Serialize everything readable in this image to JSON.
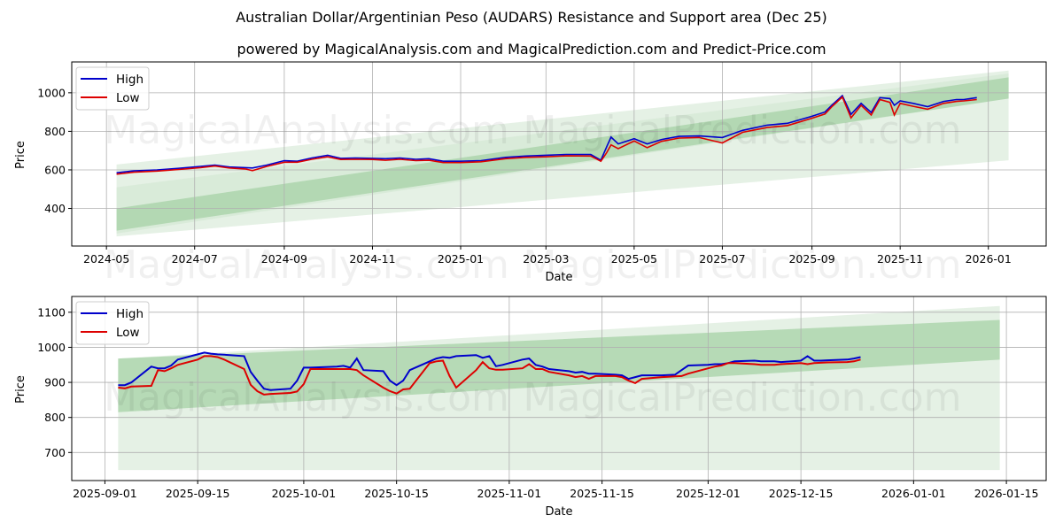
{
  "title": "Australian Dollar/Argentinian Peso (AUDARS) Resistance and Support area (Dec 25)",
  "subtitle": "powered by MagicalAnalysis.com and MagicalPrediction.com and Predict-Price.com",
  "watermarks": [
    "MagicalAnalysis.com",
    "MagicalPrediction.com"
  ],
  "colors": {
    "high": "#0000cc",
    "low": "#dd0000",
    "band_dark": "#a6d2a6",
    "band_light": "#cfe6cf"
  },
  "chart_data": [
    {
      "type": "line",
      "title": "Full range",
      "xlabel": "Date",
      "ylabel": "Price",
      "ylim": [
        205,
        1160
      ],
      "x_ticks": [
        "2024-05",
        "2024-07",
        "2024-09",
        "2024-11",
        "2025-01",
        "2025-03",
        "2025-05",
        "2025-07",
        "2025-09",
        "2025-11",
        "2026-01"
      ],
      "y_ticks": [
        400,
        600,
        800,
        1000
      ],
      "legend": [
        "High",
        "Low"
      ],
      "legend_position": "upper left",
      "grid": true,
      "x": [
        "2024-05-08",
        "2024-05-20",
        "2024-06-05",
        "2024-06-20",
        "2024-07-05",
        "2024-07-15",
        "2024-07-25",
        "2024-08-05",
        "2024-08-10",
        "2024-08-20",
        "2024-09-01",
        "2024-09-10",
        "2024-09-20",
        "2024-10-01",
        "2024-10-10",
        "2024-10-20",
        "2024-11-01",
        "2024-11-10",
        "2024-11-20",
        "2024-12-01",
        "2024-12-10",
        "2024-12-20",
        "2025-01-01",
        "2025-01-15",
        "2025-02-01",
        "2025-02-15",
        "2025-03-01",
        "2025-03-15",
        "2025-04-01",
        "2025-04-08",
        "2025-04-12",
        "2025-04-15",
        "2025-04-20",
        "2025-05-01",
        "2025-05-10",
        "2025-05-20",
        "2025-06-01",
        "2025-06-15",
        "2025-07-01",
        "2025-07-15",
        "2025-08-01",
        "2025-08-15",
        "2025-09-01",
        "2025-09-10",
        "2025-09-15",
        "2025-09-22",
        "2025-09-28",
        "2025-10-05",
        "2025-10-12",
        "2025-10-18",
        "2025-10-25",
        "2025-10-28",
        "2025-11-01",
        "2025-11-10",
        "2025-11-20",
        "2025-12-01",
        "2025-12-10",
        "2025-12-15",
        "2025-12-24"
      ],
      "series": [
        {
          "name": "High",
          "values": [
            585,
            595,
            600,
            608,
            618,
            625,
            615,
            612,
            610,
            625,
            648,
            645,
            662,
            676,
            660,
            662,
            660,
            658,
            662,
            655,
            658,
            645,
            645,
            648,
            665,
            672,
            676,
            680,
            680,
            650,
            720,
            770,
            735,
            762,
            735,
            758,
            774,
            776,
            768,
            805,
            832,
            842,
            878,
            900,
            938,
            985,
            888,
            945,
            898,
            975,
            970,
            935,
            958,
            945,
            928,
            955,
            965,
            965,
            975
          ]
        },
        {
          "name": "Low",
          "values": [
            578,
            588,
            594,
            602,
            612,
            620,
            610,
            605,
            596,
            618,
            640,
            640,
            655,
            668,
            654,
            655,
            654,
            650,
            655,
            648,
            650,
            638,
            638,
            642,
            658,
            665,
            668,
            673,
            672,
            645,
            690,
            730,
            710,
            750,
            715,
            748,
            765,
            768,
            740,
            795,
            820,
            830,
            868,
            890,
            930,
            978,
            870,
            935,
            885,
            965,
            950,
            885,
            945,
            930,
            915,
            945,
            955,
            958,
            965
          ]
        }
      ],
      "bands": [
        {
          "name": "outer_light",
          "x": [
            "2024-05-08",
            "2026-01-15"
          ],
          "upper": [
            628,
            1115
          ],
          "lower": [
            255,
            650
          ]
        },
        {
          "name": "upper_light",
          "x": [
            "2024-05-08",
            "2026-01-15"
          ],
          "upper": [
            510,
            1100
          ],
          "lower": [
            270,
            970
          ]
        },
        {
          "name": "dark_channel",
          "x": [
            "2024-05-08",
            "2026-01-15"
          ],
          "upper": [
            400,
            1080
          ],
          "lower": [
            285,
            970
          ]
        }
      ]
    },
    {
      "type": "line",
      "title": "Zoomed range",
      "xlabel": "Date",
      "ylabel": "Price",
      "ylim": [
        620,
        1145
      ],
      "x_ticks": [
        "2025-09-01",
        "2025-09-15",
        "2025-10-01",
        "2025-10-15",
        "2025-11-01",
        "2025-11-15",
        "2025-12-01",
        "2025-12-15",
        "2026-01-01",
        "2026-01-15"
      ],
      "y_ticks": [
        700,
        800,
        900,
        1000,
        1100
      ],
      "legend": [
        "High",
        "Low"
      ],
      "legend_position": "upper left",
      "grid": true,
      "x": [
        "2025-09-03",
        "2025-09-04",
        "2025-09-05",
        "2025-09-08",
        "2025-09-09",
        "2025-09-10",
        "2025-09-11",
        "2025-09-12",
        "2025-09-15",
        "2025-09-16",
        "2025-09-17",
        "2025-09-18",
        "2025-09-19",
        "2025-09-22",
        "2025-09-23",
        "2025-09-24",
        "2025-09-25",
        "2025-09-26",
        "2025-09-29",
        "2025-09-30",
        "2025-10-01",
        "2025-10-02",
        "2025-10-06",
        "2025-10-07",
        "2025-10-08",
        "2025-10-09",
        "2025-10-10",
        "2025-10-13",
        "2025-10-14",
        "2025-10-15",
        "2025-10-16",
        "2025-10-17",
        "2025-10-20",
        "2025-10-21",
        "2025-10-22",
        "2025-10-23",
        "2025-10-24",
        "2025-10-27",
        "2025-10-28",
        "2025-10-29",
        "2025-10-30",
        "2025-10-31",
        "2025-11-03",
        "2025-11-04",
        "2025-11-05",
        "2025-11-06",
        "2025-11-07",
        "2025-11-10",
        "2025-11-11",
        "2025-11-12",
        "2025-11-13",
        "2025-11-14",
        "2025-11-17",
        "2025-11-18",
        "2025-11-19",
        "2025-11-20",
        "2025-11-21",
        "2025-11-24",
        "2025-11-25",
        "2025-11-26",
        "2025-11-27",
        "2025-11-28",
        "2025-12-01",
        "2025-12-02",
        "2025-12-03",
        "2025-12-04",
        "2025-12-05",
        "2025-12-08",
        "2025-12-09",
        "2025-12-10",
        "2025-12-11",
        "2025-12-12",
        "2025-12-15",
        "2025-12-16",
        "2025-12-17",
        "2025-12-18",
        "2025-12-19",
        "2025-12-22",
        "2025-12-23",
        "2025-12-24"
      ],
      "series": [
        {
          "name": "High",
          "values": [
            892,
            892,
            900,
            945,
            940,
            940,
            948,
            965,
            980,
            985,
            982,
            980,
            979,
            975,
            930,
            905,
            882,
            878,
            882,
            905,
            942,
            942,
            945,
            947,
            942,
            968,
            935,
            932,
            905,
            892,
            905,
            935,
            960,
            968,
            972,
            970,
            975,
            978,
            970,
            975,
            946,
            950,
            965,
            968,
            950,
            945,
            938,
            932,
            928,
            930,
            925,
            925,
            922,
            920,
            910,
            915,
            920,
            920,
            921,
            922,
            935,
            948,
            950,
            952,
            952,
            955,
            960,
            962,
            960,
            960,
            960,
            958,
            962,
            975,
            962,
            962,
            963,
            965,
            968,
            972
          ]
        },
        {
          "name": "Low",
          "values": [
            885,
            883,
            888,
            890,
            935,
            932,
            940,
            950,
            965,
            975,
            975,
            972,
            965,
            938,
            893,
            875,
            865,
            867,
            870,
            874,
            895,
            938,
            938,
            938,
            938,
            935,
            920,
            885,
            875,
            868,
            880,
            882,
            955,
            960,
            962,
            918,
            885,
            935,
            958,
            940,
            936,
            936,
            940,
            952,
            938,
            938,
            930,
            920,
            915,
            918,
            910,
            918,
            918,
            915,
            905,
            898,
            910,
            915,
            916,
            917,
            918,
            925,
            940,
            945,
            948,
            955,
            955,
            952,
            950,
            950,
            950,
            952,
            955,
            952,
            955,
            956,
            957,
            958,
            960,
            965
          ]
        }
      ],
      "bands": [
        {
          "name": "outer_light",
          "x": [
            "2025-09-03",
            "2026-01-14"
          ],
          "upper": [
            968,
            1118
          ],
          "lower": [
            650,
            650
          ]
        },
        {
          "name": "dark_channel",
          "x": [
            "2025-09-03",
            "2026-01-14"
          ],
          "upper": [
            968,
            1078
          ],
          "lower": [
            815,
            965
          ]
        }
      ]
    }
  ]
}
